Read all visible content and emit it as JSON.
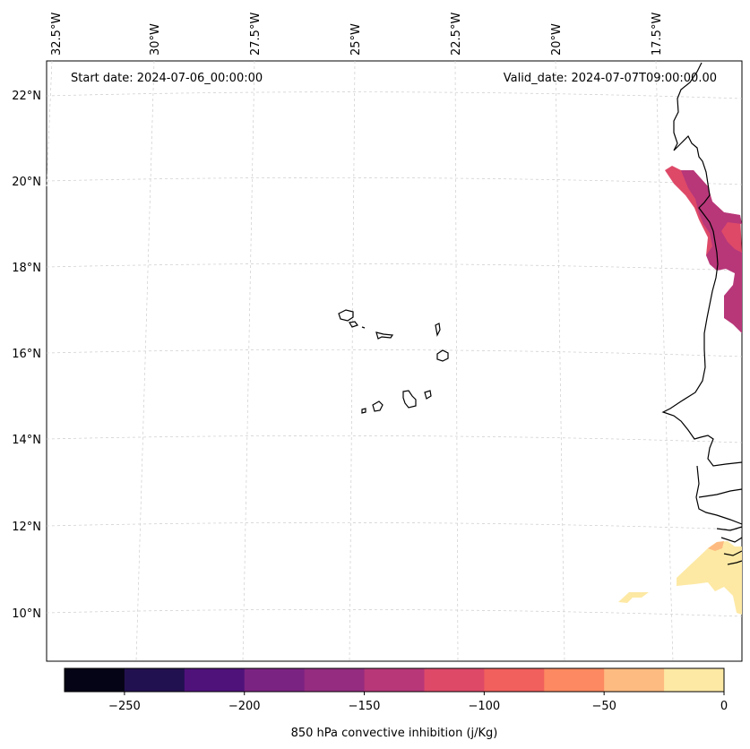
{
  "map": {
    "start_date_text": "Start date: 2024-07-06_00:00:00",
    "valid_date_text": "Valid_date: 2024-07-07T09:00:00.00",
    "gridlines": true,
    "longitude_labels": [
      "32.5°W",
      "30°W",
      "27.5°W",
      "25°W",
      "22.5°W",
      "20°W",
      "17.5°W"
    ],
    "latitude_labels": [
      "22°N",
      "20°N",
      "18°N",
      "16°N",
      "14°N",
      "12°N",
      "10°N"
    ],
    "extent": {
      "lon_min": -32.5,
      "lon_max": -15.8,
      "lat_min": 9.0,
      "lat_max": 22.6
    }
  },
  "colorbar": {
    "label": "850 hPa convective inhibition (j/Kg)",
    "tick_labels": [
      "−250",
      "−200",
      "−150",
      "−100",
      "−50",
      "0"
    ],
    "tick_values": [
      -250,
      -200,
      -150,
      -100,
      -50,
      0
    ],
    "bins": [
      -275,
      -250,
      -225,
      -200,
      -175,
      -150,
      -125,
      -100,
      -75,
      -50,
      -25,
      0
    ],
    "colors": [
      "#050416",
      "#221150",
      "#4f127b",
      "#7b2382",
      "#952c80",
      "#b73779",
      "#de4968",
      "#f1605d",
      "#fc8961",
      "#febb81",
      "#fde9a4"
    ]
  },
  "fields": {
    "cin_patches": [
      {
        "level": "-125 to -100",
        "color": "#de4968"
      },
      {
        "level": "-150 to -125",
        "color": "#b73779"
      },
      {
        "level": "-25 to 0",
        "color": "#fde9a4"
      },
      {
        "level": "-50 to -25",
        "color": "#febb81"
      }
    ]
  }
}
